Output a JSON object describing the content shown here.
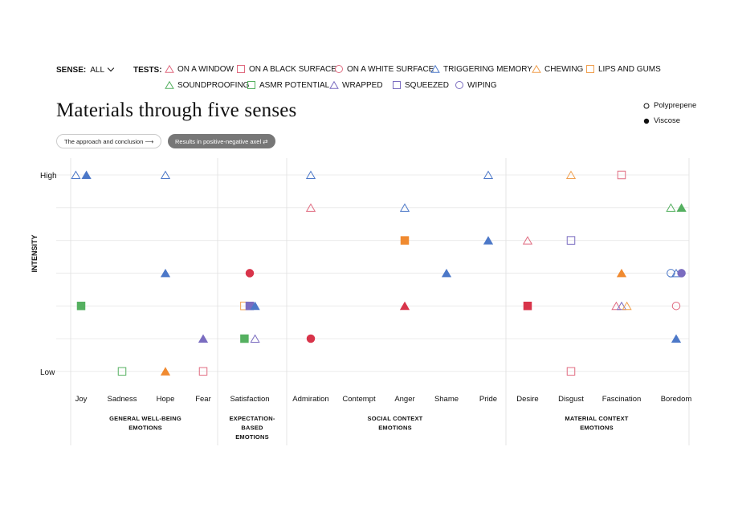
{
  "filters": {
    "sense_label": "SENSE:",
    "sense_value": "ALL",
    "tests_label": "TESTS:",
    "tests": [
      {
        "label": "ON A WINDOW",
        "color": "#e06b80",
        "shape": "triangle"
      },
      {
        "label": "ON A BLACK SURFACE",
        "color": "#e06b80",
        "shape": "square"
      },
      {
        "label": "ON A WHITE SURFACE",
        "color": "#e06b80",
        "shape": "circle"
      },
      {
        "label": "TRIGGERING MEMORY",
        "color": "#4c78c8",
        "shape": "triangle"
      },
      {
        "label": "CHEWING",
        "color": "#f0a050",
        "shape": "triangle"
      },
      {
        "label": "LIPS AND GUMS",
        "color": "#f0a050",
        "shape": "square"
      },
      {
        "label": "SOUNDPROOFING",
        "color": "#55b060",
        "shape": "triangle"
      },
      {
        "label": "ASMR POTENTIAL",
        "color": "#55b060",
        "shape": "square"
      },
      {
        "label": "WRAPPED",
        "color": "#7a6cc0",
        "shape": "triangle"
      },
      {
        "label": "SQUEEZED",
        "color": "#7a6cc0",
        "shape": "square"
      },
      {
        "label": "WIPING",
        "color": "#7a6cc0",
        "shape": "circle"
      }
    ]
  },
  "title": "Materials through five senses",
  "buttons": {
    "approach": "The approach and conclusion ⟶",
    "results": "Results in positive-negative axel ⇄"
  },
  "materials_legend": [
    {
      "label": "Polyprepene",
      "filled": false
    },
    {
      "label": "Viscose",
      "filled": true
    }
  ],
  "chart_data": {
    "type": "scatter",
    "ylabel": "INTENSITY",
    "y_tick_labels": {
      "7": "High",
      "1": "Low"
    },
    "ylim": [
      1,
      7
    ],
    "categories": [
      "Joy",
      "Sadness",
      "Hope",
      "Fear",
      "Satisfaction",
      "Admiration",
      "Contempt",
      "Anger",
      "Shame",
      "Pride",
      "Desire",
      "Disgust",
      "Fascination",
      "Boredom"
    ],
    "groups": [
      {
        "label": [
          "GENERAL WELL-BEING",
          "EMOTIONS"
        ],
        "categories": [
          "Joy",
          "Sadness",
          "Hope",
          "Fear"
        ]
      },
      {
        "label": [
          "EXPECTATION-",
          "BASED",
          "EMOTIONS"
        ],
        "categories": [
          "Satisfaction"
        ]
      },
      {
        "label": [
          "SOCIAL CONTEXT",
          "EMOTIONS"
        ],
        "categories": [
          "Admiration",
          "Contempt",
          "Anger",
          "Shame",
          "Pride"
        ]
      },
      {
        "label": [
          "MATERIAL CONTEXT",
          "EMOTIONS"
        ],
        "categories": [
          "Desire",
          "Disgust",
          "Fascination",
          "Boredom"
        ]
      }
    ],
    "grid": true,
    "colors": {
      "pink": "#e06b80",
      "red": "#d8344a",
      "blue": "#4c78c8",
      "orange": "#f0a050",
      "orange_filled": "#f08a30",
      "green": "#55b060",
      "purple": "#7a6cc0"
    },
    "points": [
      {
        "category": "Joy",
        "offset": -0.3,
        "y": 7,
        "shape": "triangle",
        "color": "#4c78c8",
        "filled": false
      },
      {
        "category": "Joy",
        "offset": 0.3,
        "y": 7,
        "shape": "triangle",
        "color": "#4c78c8",
        "filled": true
      },
      {
        "category": "Joy",
        "offset": 0,
        "y": 3,
        "shape": "square",
        "color": "#55b060",
        "filled": true
      },
      {
        "category": "Sadness",
        "offset": 0,
        "y": 1,
        "shape": "square",
        "color": "#55b060",
        "filled": false
      },
      {
        "category": "Hope",
        "offset": 0,
        "y": 7,
        "shape": "triangle",
        "color": "#4c78c8",
        "filled": false
      },
      {
        "category": "Hope",
        "offset": 0,
        "y": 4,
        "shape": "triangle",
        "color": "#4c78c8",
        "filled": true
      },
      {
        "category": "Hope",
        "offset": 0,
        "y": 1,
        "shape": "triangle",
        "color": "#f08a30",
        "filled": true
      },
      {
        "category": "Fear",
        "offset": 0,
        "y": 2,
        "shape": "triangle",
        "color": "#7a6cc0",
        "filled": true
      },
      {
        "category": "Fear",
        "offset": 0,
        "y": 1,
        "shape": "square",
        "color": "#e06b80",
        "filled": false
      },
      {
        "category": "Satisfaction",
        "offset": 0,
        "y": 4,
        "shape": "circle",
        "color": "#d8344a",
        "filled": true
      },
      {
        "category": "Satisfaction",
        "offset": -0.3,
        "y": 3,
        "shape": "square",
        "color": "#f0a050",
        "filled": false
      },
      {
        "category": "Satisfaction",
        "offset": 0,
        "y": 3,
        "shape": "square",
        "color": "#7a6cc0",
        "filled": true
      },
      {
        "category": "Satisfaction",
        "offset": 0.3,
        "y": 3,
        "shape": "triangle",
        "color": "#4c78c8",
        "filled": true
      },
      {
        "category": "Satisfaction",
        "offset": -0.3,
        "y": 2,
        "shape": "square",
        "color": "#55b060",
        "filled": true
      },
      {
        "category": "Satisfaction",
        "offset": 0.3,
        "y": 2,
        "shape": "triangle",
        "color": "#7a6cc0",
        "filled": false
      },
      {
        "category": "Admiration",
        "offset": 0,
        "y": 7,
        "shape": "triangle",
        "color": "#4c78c8",
        "filled": false
      },
      {
        "category": "Admiration",
        "offset": 0,
        "y": 6,
        "shape": "triangle",
        "color": "#e06b80",
        "filled": false
      },
      {
        "category": "Admiration",
        "offset": 0,
        "y": 2,
        "shape": "circle",
        "color": "#d8344a",
        "filled": true
      },
      {
        "category": "Anger",
        "offset": 0,
        "y": 6,
        "shape": "triangle",
        "color": "#4c78c8",
        "filled": false
      },
      {
        "category": "Anger",
        "offset": 0,
        "y": 5,
        "shape": "square",
        "color": "#f08a30",
        "filled": true
      },
      {
        "category": "Anger",
        "offset": 0,
        "y": 3,
        "shape": "triangle",
        "color": "#d8344a",
        "filled": true
      },
      {
        "category": "Shame",
        "offset": 0,
        "y": 4,
        "shape": "triangle",
        "color": "#4c78c8",
        "filled": true
      },
      {
        "category": "Pride",
        "offset": 0,
        "y": 7,
        "shape": "triangle",
        "color": "#4c78c8",
        "filled": false
      },
      {
        "category": "Pride",
        "offset": 0,
        "y": 5,
        "shape": "triangle",
        "color": "#4c78c8",
        "filled": true
      },
      {
        "category": "Desire",
        "offset": 0,
        "y": 5,
        "shape": "triangle",
        "color": "#e06b80",
        "filled": false
      },
      {
        "category": "Desire",
        "offset": 0,
        "y": 3,
        "shape": "square",
        "color": "#d8344a",
        "filled": true
      },
      {
        "category": "Disgust",
        "offset": 0,
        "y": 7,
        "shape": "triangle",
        "color": "#f0a050",
        "filled": false
      },
      {
        "category": "Disgust",
        "offset": 0,
        "y": 5,
        "shape": "square",
        "color": "#7a6cc0",
        "filled": false
      },
      {
        "category": "Disgust",
        "offset": 0,
        "y": 1,
        "shape": "square",
        "color": "#e06b80",
        "filled": false
      },
      {
        "category": "Fascination",
        "offset": 0,
        "y": 7,
        "shape": "square",
        "color": "#e06b80",
        "filled": false
      },
      {
        "category": "Fascination",
        "offset": 0,
        "y": 4,
        "shape": "triangle",
        "color": "#f08a30",
        "filled": true
      },
      {
        "category": "Fascination",
        "offset": -0.3,
        "y": 3,
        "shape": "triangle",
        "color": "#e06b80",
        "filled": false
      },
      {
        "category": "Fascination",
        "offset": 0,
        "y": 3,
        "shape": "triangle",
        "color": "#7a6cc0",
        "filled": false
      },
      {
        "category": "Fascination",
        "offset": 0.3,
        "y": 3,
        "shape": "triangle",
        "color": "#f0a050",
        "filled": false
      },
      {
        "category": "Boredom",
        "offset": -0.3,
        "y": 6,
        "shape": "triangle",
        "color": "#55b060",
        "filled": false
      },
      {
        "category": "Boredom",
        "offset": 0.3,
        "y": 6,
        "shape": "triangle",
        "color": "#55b060",
        "filled": true
      },
      {
        "category": "Boredom",
        "offset": -0.3,
        "y": 4,
        "shape": "circle",
        "color": "#4c78c8",
        "filled": false
      },
      {
        "category": "Boredom",
        "offset": 0,
        "y": 4,
        "shape": "triangle",
        "color": "#4c78c8",
        "filled": false
      },
      {
        "category": "Boredom",
        "offset": 0.3,
        "y": 4,
        "shape": "circle",
        "color": "#7a6cc0",
        "filled": true
      },
      {
        "category": "Boredom",
        "offset": 0,
        "y": 3,
        "shape": "circle",
        "color": "#e06b80",
        "filled": false
      },
      {
        "category": "Boredom",
        "offset": 0,
        "y": 2,
        "shape": "triangle",
        "color": "#4c78c8",
        "filled": true
      }
    ]
  }
}
